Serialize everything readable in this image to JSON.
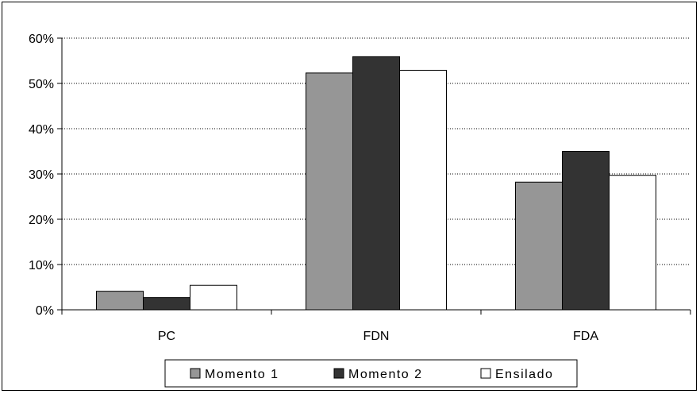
{
  "chart_data": {
    "type": "bar",
    "categories": [
      "PC",
      "FDN",
      "FDA"
    ],
    "series": [
      {
        "name": "Momento 1",
        "values": [
          4.1,
          52.3,
          28.2
        ],
        "color": "#969696"
      },
      {
        "name": "Momento 2",
        "values": [
          2.7,
          55.9,
          35.0
        ],
        "color": "#333333"
      },
      {
        "name": "Ensilado",
        "values": [
          5.4,
          52.9,
          29.7
        ],
        "color": "#ffffff"
      }
    ],
    "ylim": [
      0,
      60
    ],
    "yticks": [
      0,
      10,
      20,
      30,
      40,
      50,
      60
    ],
    "ytick_labels": [
      "0%",
      "10%",
      "20%",
      "30%",
      "40%",
      "50%",
      "60%"
    ],
    "grid": "horizontal dotted",
    "legend_position": "bottom"
  }
}
